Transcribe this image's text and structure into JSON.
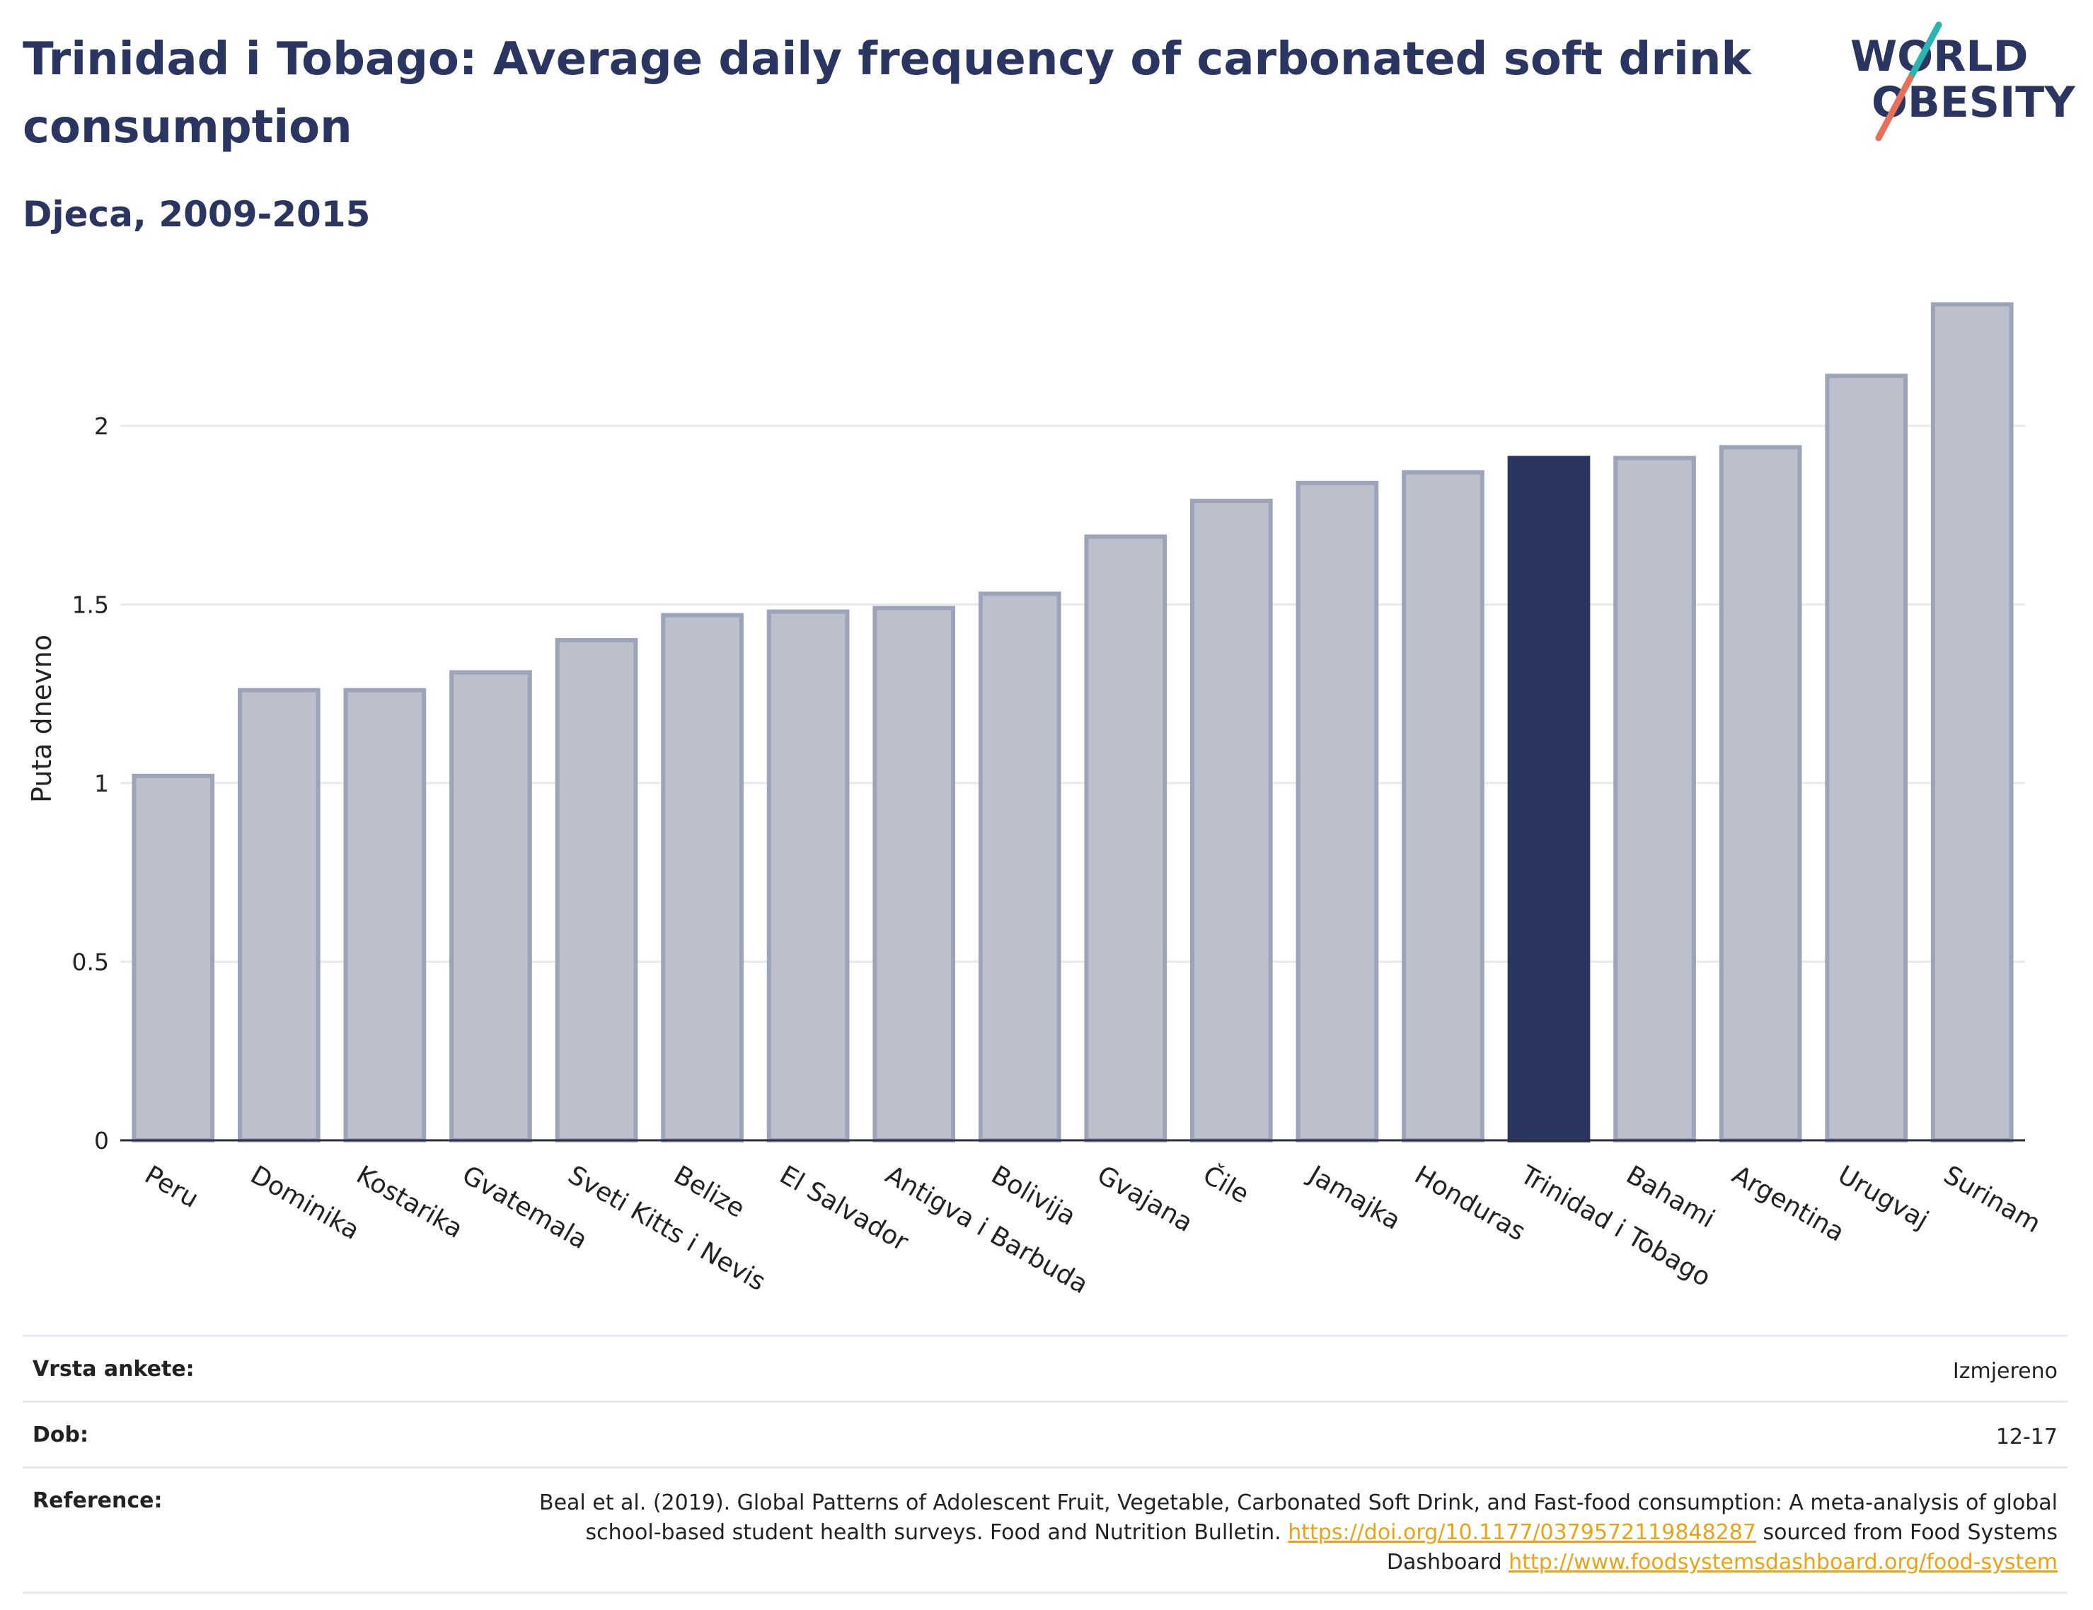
{
  "header": {
    "title": "Trinidad i Tobago: Average daily frequency of carbonated soft drink consumption",
    "subtitle": "Djeca, 2009-2015"
  },
  "logo": {
    "line1": "WORLD",
    "line2": "OBESITY",
    "colors": {
      "text": "#2a3561",
      "slash_top": "#2bb5b0",
      "slash_bottom": "#e8705a"
    }
  },
  "chart_data": {
    "type": "bar",
    "title": "Trinidad i Tobago: Average daily frequency of carbonated soft drink consumption",
    "subtitle": "Djeca, 2009-2015",
    "xlabel": "",
    "ylabel": "Puta dnevno",
    "ylim": [
      0,
      2.4
    ],
    "yticks": [
      0,
      0.5,
      1,
      1.5,
      2
    ],
    "ytick_labels": [
      "0",
      "0.5",
      "1",
      "1.5",
      "2"
    ],
    "grid": true,
    "categories": [
      "Peru",
      "Dominika",
      "Kostarika",
      "Gvatemala",
      "Sveti Kitts i Nevis",
      "Belize",
      "El Salvador",
      "Antigva i Barbuda",
      "Bolivija",
      "Gvajana",
      "Čile",
      "Jamajka",
      "Honduras",
      "Trinidad i Tobago",
      "Bahami",
      "Argentina",
      "Urugvaj",
      "Surinam"
    ],
    "values": [
      1.02,
      1.26,
      1.26,
      1.31,
      1.4,
      1.47,
      1.48,
      1.49,
      1.53,
      1.69,
      1.79,
      1.84,
      1.87,
      1.91,
      1.91,
      1.94,
      2.14,
      2.34
    ],
    "highlight": "Trinidad i Tobago",
    "colors": {
      "default_fill": "#bcc0cd",
      "default_stroke": "#9ea4b8",
      "highlight": "#2a3561",
      "grid": "#e8e9ee",
      "axis": "#2a2f45"
    }
  },
  "meta": {
    "rows": [
      {
        "key": "Vrsta ankete:",
        "value": "Izmjereno"
      },
      {
        "key": "Dob:",
        "value": "12-17"
      }
    ],
    "reference": {
      "key": "Reference:",
      "text_before": "Beal et al. (2019). Global Patterns of Adolescent Fruit, Vegetable, Carbonated Soft Drink, and Fast-food consumption: A meta-analysis of global school-based student health surveys. Food and Nutrition Bulletin. ",
      "link1": "https://doi.org/10.1177/0379572119848287",
      "text_middle": " sourced from Food Systems Dashboard ",
      "link2": "http://www.foodsystemsdashboard.org/food-system"
    }
  }
}
